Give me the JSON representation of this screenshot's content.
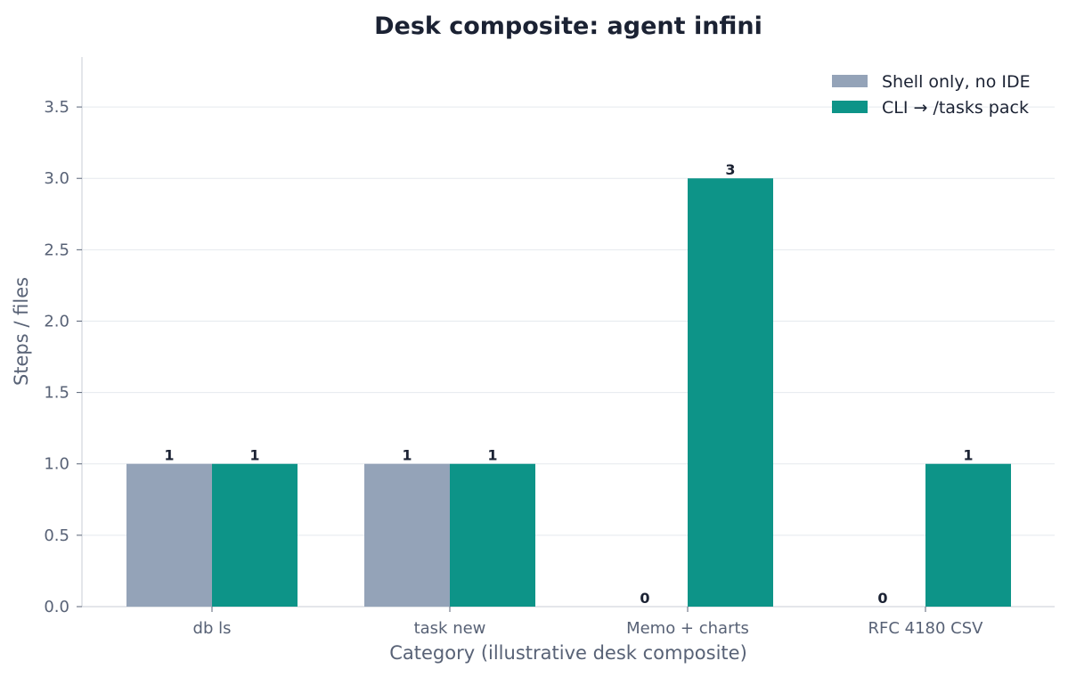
{
  "chart_data": {
    "type": "bar",
    "title": "Desk composite: agent infini",
    "xlabel": "Category (illustrative desk composite)",
    "ylabel": "Steps / files",
    "categories": [
      "db ls",
      "task new",
      "Memo + charts",
      "RFC 4180 CSV"
    ],
    "series": [
      {
        "name": "Shell only, no IDE",
        "values": [
          1,
          1,
          0,
          0
        ],
        "color": "#94a3b8"
      },
      {
        "name": "CLI → /tasks pack",
        "values": [
          1,
          1,
          3,
          1
        ],
        "color": "#0d9488"
      }
    ],
    "ylim": [
      0,
      3.85
    ],
    "yticks": [
      0.0,
      0.5,
      1.0,
      1.5,
      2.0,
      2.5,
      3.0,
      3.5
    ],
    "ytick_labels": [
      "0.0",
      "0.5",
      "1.0",
      "1.5",
      "2.0",
      "2.5",
      "3.0",
      "3.5"
    ],
    "grid": true,
    "legend_position": "top-right",
    "colors": {
      "grid": "#e5e9ee",
      "axis": "#c9ced6",
      "text": "#1b2233",
      "muted": "#586276"
    }
  }
}
